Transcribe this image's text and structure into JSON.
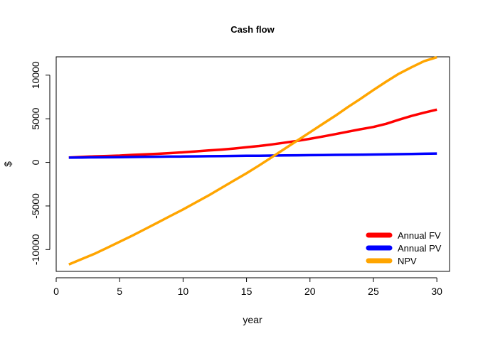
{
  "chart_data": {
    "type": "line",
    "title": "Cash flow",
    "xlabel": "year",
    "ylabel": "$",
    "xlim": [
      0.0,
      31.0
    ],
    "ylim": [
      -12500,
      12100
    ],
    "xticks": [
      0,
      5,
      10,
      15,
      20,
      25,
      30
    ],
    "yticks": [
      -10000,
      -5000,
      0,
      5000,
      10000
    ],
    "xtick_labels": [
      "0",
      "5",
      "10",
      "15",
      "20",
      "25",
      "30"
    ],
    "ytick_labels": [
      "-10000",
      "-5000",
      "0",
      "5000",
      "10000"
    ],
    "grid": false,
    "legend_position": "bottom-right",
    "x": [
      1,
      2,
      3,
      4,
      5,
      6,
      7,
      8,
      9,
      10,
      11,
      12,
      13,
      14,
      15,
      16,
      17,
      18,
      19,
      20,
      21,
      22,
      23,
      24,
      25,
      26,
      27,
      28,
      29,
      30
    ],
    "series": [
      {
        "name": "Annual FV",
        "color": "#ff0000",
        "values": [
          556,
          620,
          690,
          730,
          780,
          860,
          920,
          980,
          1060,
          1150,
          1260,
          1360,
          1460,
          1580,
          1740,
          1880,
          2060,
          2260,
          2460,
          2700,
          2960,
          3240,
          3520,
          3800,
          4060,
          4420,
          4880,
          5320,
          5700,
          6050
        ]
      },
      {
        "name": "Annual PV",
        "color": "#0000ff",
        "values": [
          540,
          555,
          570,
          585,
          600,
          615,
          630,
          645,
          660,
          675,
          690,
          705,
          720,
          735,
          750,
          765,
          780,
          795,
          810,
          825,
          840,
          855,
          870,
          885,
          900,
          915,
          940,
          965,
          990,
          1010
        ]
      },
      {
        "name": "NPV",
        "color": "#ffa500",
        "values": [
          -11700,
          -11100,
          -10500,
          -9800,
          -9100,
          -8400,
          -7650,
          -6900,
          -6150,
          -5400,
          -4600,
          -3800,
          -2950,
          -2100,
          -1250,
          -350,
          600,
          1550,
          2500,
          3450,
          4400,
          5350,
          6350,
          7300,
          8300,
          9250,
          10150,
          10900,
          11600,
          12050
        ]
      }
    ]
  }
}
